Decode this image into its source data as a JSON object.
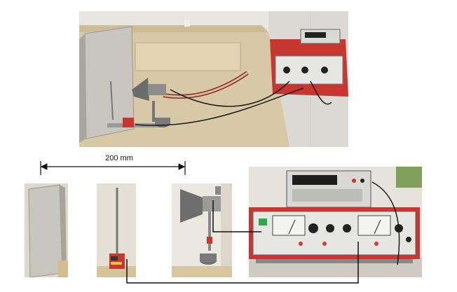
{
  "dimension": {
    "label": "200 mm"
  },
  "photos": {
    "setup_overview": "lab-setup-overview-photo",
    "plate": "reflector-plate-photo",
    "probe": "dipole-probe-photo",
    "horn": "horn-antenna-photo",
    "instrument": "measurement-instrument-photo"
  },
  "colors": {
    "bench_wood": "#d8c9a6",
    "instrument_red": "#c8372f",
    "meter_panel": "#e6e6e2",
    "cable": "#1a1a1a"
  }
}
